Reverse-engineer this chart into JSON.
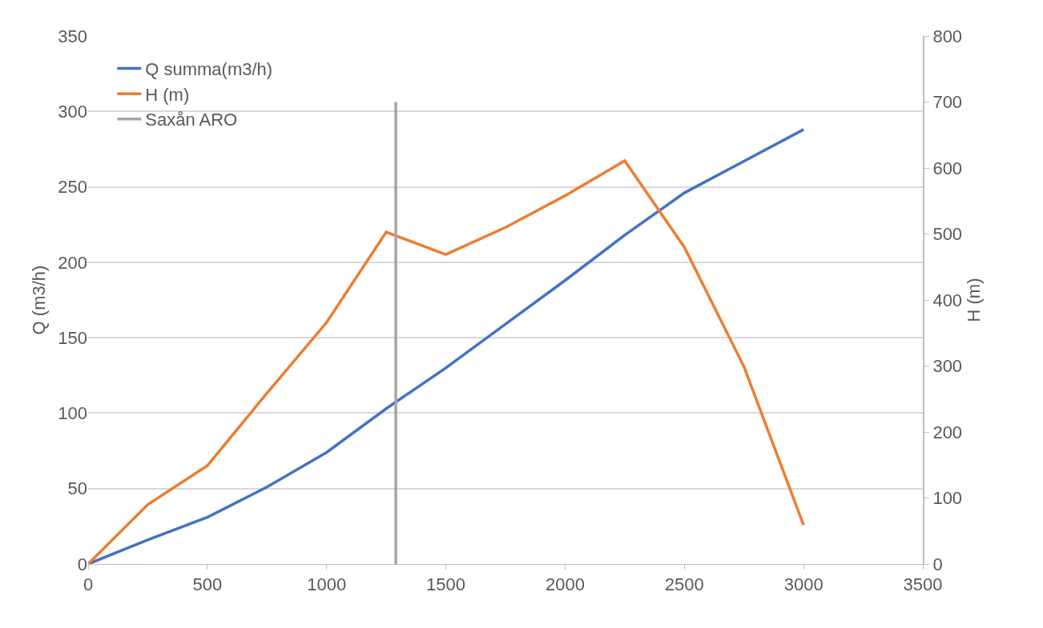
{
  "chart_data": {
    "type": "line",
    "ylabel": "Q (m3/h)",
    "y2label": "H (m)",
    "x": [
      0,
      250,
      500,
      750,
      1000,
      1250,
      1500,
      1750,
      2000,
      2250,
      2500,
      2750,
      3000
    ],
    "series": [
      {
        "name": "Q summa(m3/h)",
        "color": "#4472c4",
        "values": [
          0,
          16,
          31,
          51,
          74,
          103,
          130,
          159,
          188,
          218,
          246,
          267,
          288
        ]
      },
      {
        "name": "H (m)",
        "color": "#ed7d31",
        "axis": "y2",
        "values": [
          0,
          90,
          149,
          259,
          366,
          503,
          469,
          510,
          558,
          611,
          480,
          299,
          59
        ]
      },
      {
        "name": "Saxån ARO",
        "color": "#a5a5a5",
        "axis": "y2",
        "x": [
          1290,
          1290
        ],
        "values": [
          0,
          700
        ]
      }
    ],
    "xlim": [
      0,
      3500
    ],
    "xticks": [
      0,
      500,
      1000,
      1500,
      2000,
      2500,
      3000,
      3500
    ],
    "ylim": [
      0,
      350
    ],
    "yticks": [
      0,
      50,
      100,
      150,
      200,
      250,
      300,
      350
    ],
    "y2lim": [
      0,
      800
    ],
    "y2ticks": [
      0,
      100,
      200,
      300,
      400,
      500,
      600,
      700,
      800
    ],
    "grid": "y",
    "legend": "top left",
    "marker": "none",
    "line_style": "solid"
  }
}
